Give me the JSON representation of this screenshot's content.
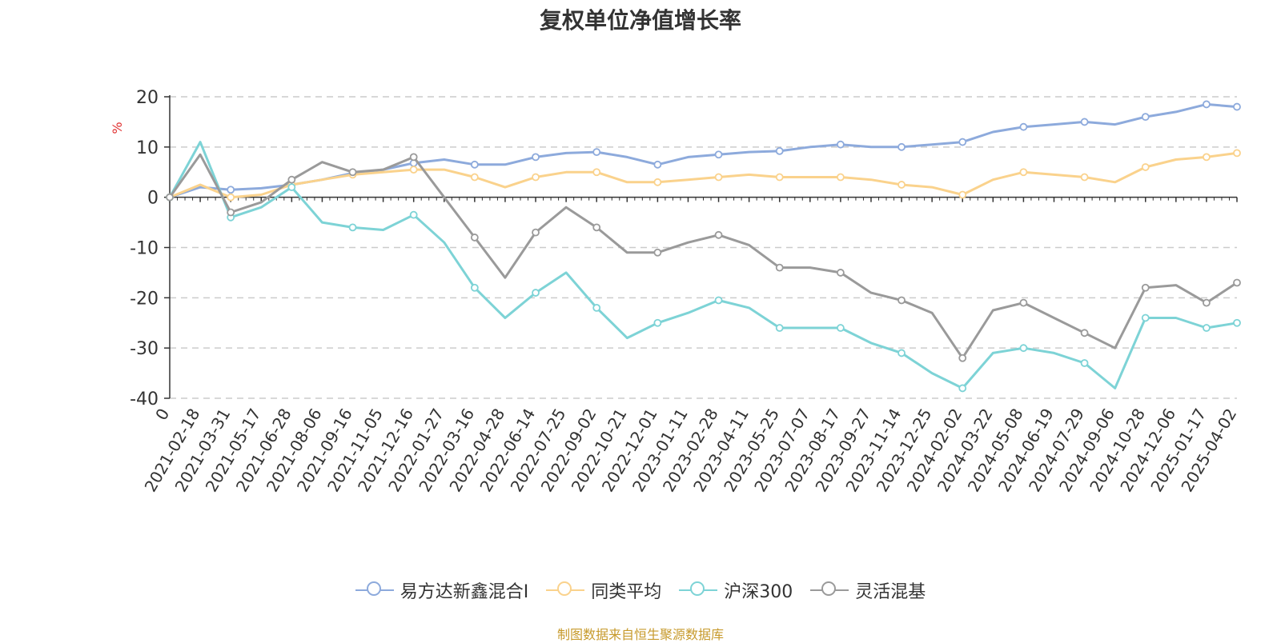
{
  "title": "复权单位净值增长率",
  "source": "制图数据来自恒生聚源数据库",
  "chart_data": {
    "type": "line",
    "title": "复权单位净值增长率",
    "ylabel": "%",
    "ylim": [
      -40,
      20
    ],
    "yticks": [
      20,
      10,
      0,
      -10,
      -20,
      -30,
      -40
    ],
    "xticks": [
      "0",
      "2021-02-18",
      "2021-03-31",
      "2021-05-17",
      "2021-06-28",
      "2021-08-06",
      "2021-09-16",
      "2021-11-05",
      "2021-12-16",
      "2022-01-27",
      "2022-03-16",
      "2022-04-28",
      "2022-06-14",
      "2022-07-25",
      "2022-09-02",
      "2022-10-21",
      "2022-12-01",
      "2023-01-11",
      "2023-02-28",
      "2023-04-11",
      "2023-05-25",
      "2023-07-07",
      "2023-08-17",
      "2023-09-27",
      "2023-11-14",
      "2023-12-25",
      "2024-02-02",
      "2024-03-22",
      "2024-05-08",
      "2024-06-19",
      "2024-07-29",
      "2024-09-06",
      "2024-10-28",
      "2024-12-06",
      "2025-01-17",
      "2025-04-02"
    ],
    "x": [
      0,
      1,
      2,
      3,
      4,
      5,
      6,
      7,
      8,
      9,
      10,
      11,
      12,
      13,
      14,
      15,
      16,
      17,
      18,
      19,
      20,
      21,
      22,
      23,
      24,
      25,
      26,
      27,
      28,
      29,
      30,
      31,
      32,
      33,
      34,
      35
    ],
    "legend_position": "bottom",
    "series": [
      {
        "name": "易方达新鑫混合I",
        "color": "#8daadc",
        "values": [
          0,
          2.0,
          1.5,
          1.8,
          2.5,
          3.5,
          4.8,
          5.5,
          6.8,
          7.5,
          6.5,
          6.5,
          8.0,
          8.8,
          9.0,
          8.0,
          6.5,
          8.0,
          8.5,
          9.0,
          9.2,
          10.0,
          10.5,
          10.0,
          10.0,
          10.5,
          11.0,
          13.0,
          14.0,
          14.5,
          15.0,
          14.5,
          16.0,
          17.0,
          18.5,
          18.0
        ]
      },
      {
        "name": "同类平均",
        "color": "#fad28c",
        "values": [
          0,
          2.5,
          0.0,
          0.5,
          2.5,
          3.5,
          4.5,
          5.0,
          5.5,
          5.5,
          4.0,
          2.0,
          4.0,
          5.0,
          5.0,
          3.0,
          3.0,
          3.5,
          4.0,
          4.5,
          4.0,
          4.0,
          4.0,
          3.5,
          2.5,
          2.0,
          0.5,
          3.5,
          5.0,
          4.5,
          4.0,
          3.0,
          6.0,
          7.5,
          8.0,
          8.8
        ]
      },
      {
        "name": "沪深300",
        "color": "#7dd3d6",
        "values": [
          0,
          11.0,
          -4.0,
          -2.0,
          2.0,
          -5.0,
          -6.0,
          -6.5,
          -3.5,
          -9.0,
          -18.0,
          -24.0,
          -19.0,
          -15.0,
          -22.0,
          -28.0,
          -25.0,
          -23.0,
          -20.5,
          -22.0,
          -26.0,
          -26.0,
          -26.0,
          -29.0,
          -31.0,
          -35.0,
          -38.0,
          -31.0,
          -30.0,
          -31.0,
          -33.0,
          -38.0,
          -24.0,
          -24.0,
          -26.0,
          -25.0
        ]
      },
      {
        "name": "灵活混基",
        "color": "#9a9a9a",
        "values": [
          0,
          8.5,
          -3.0,
          -1.0,
          3.5,
          7.0,
          5.0,
          5.5,
          8.0,
          0.0,
          -8.0,
          -16.0,
          -7.0,
          -2.0,
          -6.0,
          -11.0,
          -11.0,
          -9.0,
          -7.5,
          -9.5,
          -14.0,
          -14.0,
          -15.0,
          -19.0,
          -20.5,
          -23.0,
          -32.0,
          -22.5,
          -21.0,
          -24.0,
          -27.0,
          -30.0,
          -18.0,
          -17.5,
          -21.0,
          -17.0
        ]
      }
    ]
  }
}
